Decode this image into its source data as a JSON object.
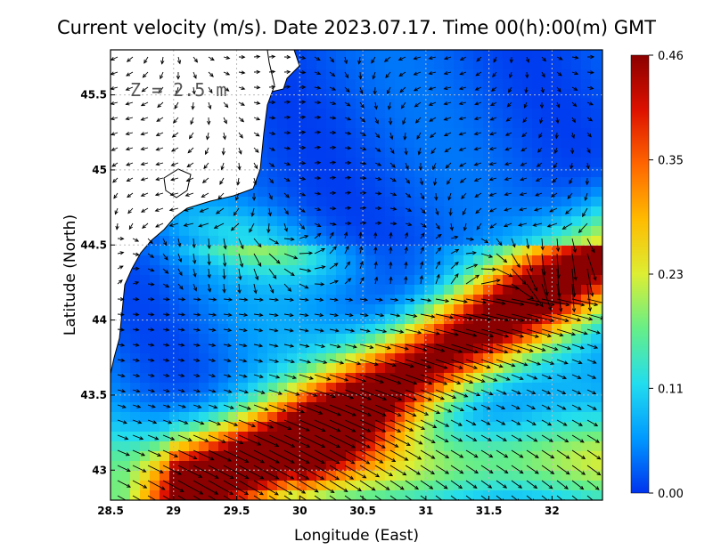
{
  "title": "Current velocity (m/s). Date 2023.07.17. Time 00(h):00(m) GMT",
  "depth_label": "Z =  2.5 m",
  "chart_data": {
    "type": "heatmap",
    "title": "Current velocity (m/s). Date 2023.07.17. Time 00(h):00(m) GMT",
    "xlabel": "Longitude (East)",
    "ylabel": "Latitude (North)",
    "xlim": [
      28.5,
      32.4
    ],
    "ylim": [
      42.8,
      45.8
    ],
    "xticks": [
      28.5,
      29,
      29.5,
      30,
      30.5,
      31,
      31.5,
      32
    ],
    "yticks": [
      43,
      43.5,
      44,
      44.5,
      45,
      45.5
    ],
    "xtick_labels": [
      "28.5",
      "29",
      "29.5",
      "30",
      "30.5",
      "31",
      "31.5",
      "32"
    ],
    "ytick_labels": [
      "43",
      "43.5",
      "44",
      "44.5",
      "45",
      "45.5"
    ],
    "grid": "dotted",
    "colorbar": {
      "min": 0.0,
      "max": 0.46,
      "ticks": [
        0.0,
        0.11,
        0.23,
        0.35,
        0.46
      ],
      "tick_labels": [
        "0.00",
        "0.11",
        "0.23",
        "0.35",
        "0.46"
      ],
      "colors": [
        "#0033ee",
        "#0099ff",
        "#22ddee",
        "#66ee88",
        "#ddee33",
        "#ffbb00",
        "#ff6600",
        "#dd1100",
        "#8b0000"
      ]
    },
    "features": [
      {
        "name": "strong-jet",
        "peak_velocity": 0.46,
        "location": "southwest, from 29.2E 42.9N curving east to 32.2E 44.3N"
      },
      {
        "name": "northern-gyre",
        "velocity": 0.05,
        "location": "north of 44.5N, low velocity"
      },
      {
        "name": "coastal-current",
        "velocity": 0.2,
        "location": "along western coast"
      }
    ]
  }
}
